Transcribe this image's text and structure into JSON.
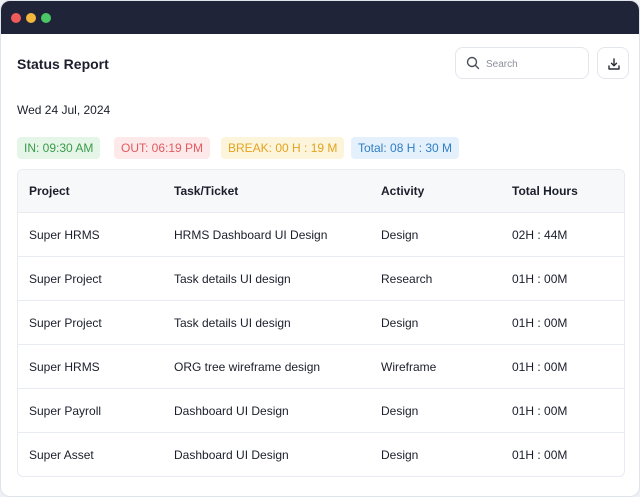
{
  "window": {
    "controls": [
      "close",
      "minimize",
      "maximize"
    ]
  },
  "header": {
    "title": "Status Report",
    "search": {
      "placeholder": "Search",
      "value": "",
      "icon": "search-icon"
    },
    "download_icon": "download-icon"
  },
  "date": "Wed 24 Jul, 2024",
  "badges": {
    "in": "IN: 09:30 AM",
    "out": "OUT: 06:19 PM",
    "break": "BREAK: 00 H : 19 M",
    "total": "Total: 08 H : 30 M"
  },
  "colors": {
    "in": "#3c9a4a",
    "out": "#e15b60",
    "break": "#e2a421",
    "total": "#2f7ec4",
    "titlebar": "#1f2438"
  },
  "table": {
    "columns": [
      "Project",
      "Task/Ticket",
      "Activity",
      "Total Hours"
    ],
    "rows": [
      [
        "Super HRMS",
        "HRMS Dashboard UI Design",
        "Design",
        "02H : 44M"
      ],
      [
        "Super Project",
        "Task details UI design",
        "Research",
        "01H : 00M"
      ],
      [
        "Super Project",
        "Task details UI design",
        "Design",
        "01H : 00M"
      ],
      [
        "Super HRMS",
        "ORG tree wireframe design",
        "Wireframe",
        "01H : 00M"
      ],
      [
        "Super Payroll",
        "Dashboard UI Design",
        "Design",
        "01H : 00M"
      ],
      [
        "Super Asset",
        "Dashboard UI Design",
        "Design",
        "01H : 00M"
      ]
    ]
  }
}
